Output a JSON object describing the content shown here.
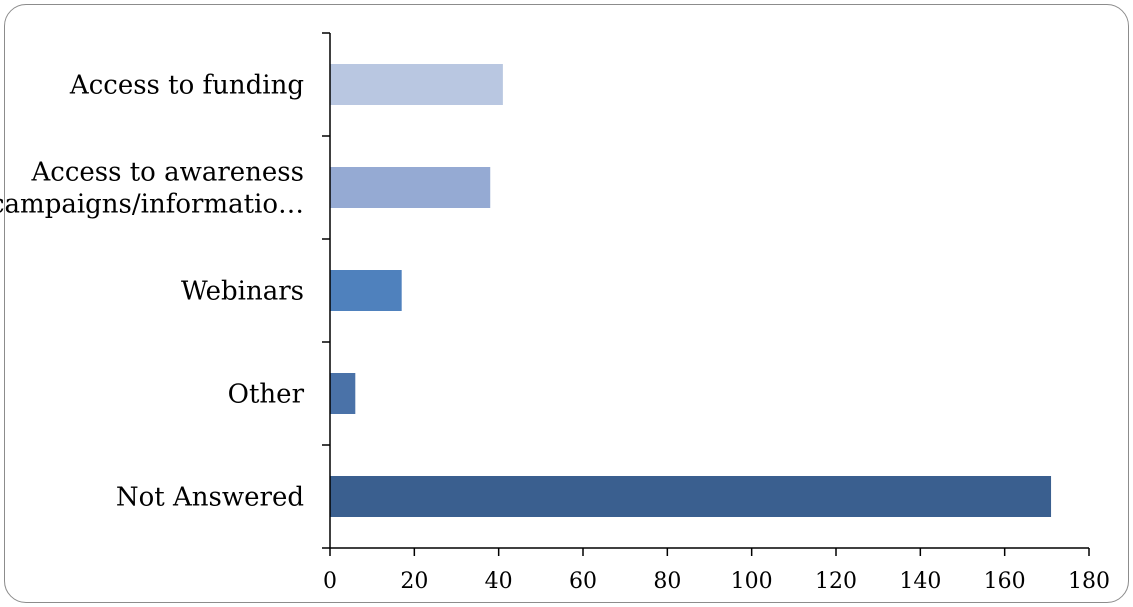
{
  "chart_data": {
    "type": "bar",
    "orientation": "horizontal",
    "categories": [
      "Access to funding",
      "Access to awareness campaigns/informatio…",
      "Webinars",
      "Other",
      "Not Answered"
    ],
    "category_lines": [
      [
        "Access to funding"
      ],
      [
        "Access to awareness",
        "campaigns/informatio…"
      ],
      [
        "Webinars"
      ],
      [
        "Other"
      ],
      [
        "Not Answered"
      ]
    ],
    "values": [
      41,
      38,
      17,
      6,
      171
    ],
    "bar_colors": [
      "#b9c7e1",
      "#95aad3",
      "#4f81bd",
      "#4a72a8",
      "#3a5f8f"
    ],
    "xlim": [
      0,
      180
    ],
    "xticks": [
      0,
      20,
      40,
      60,
      80,
      100,
      120,
      140,
      160,
      180
    ],
    "title": "",
    "xlabel": "",
    "ylabel": "",
    "grid": false,
    "legend": "none"
  }
}
